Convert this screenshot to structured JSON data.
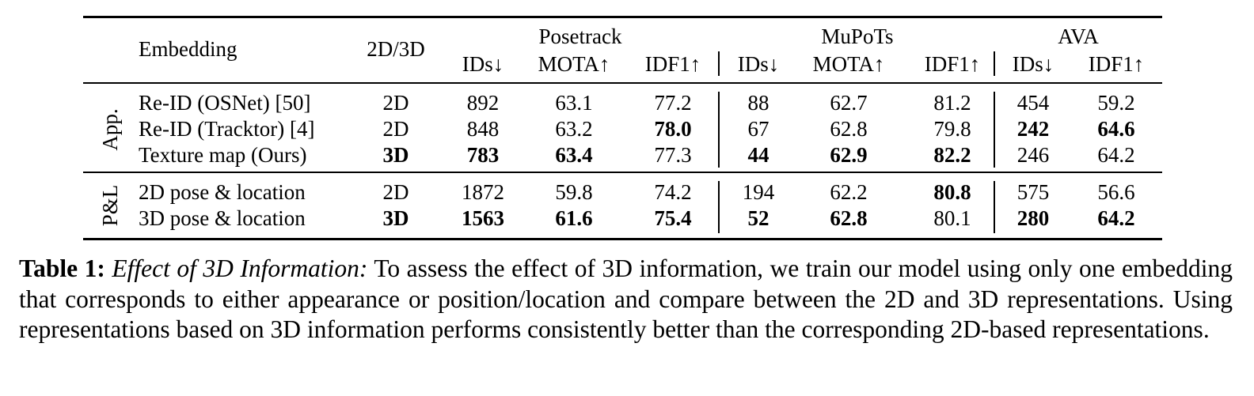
{
  "table": {
    "headers": {
      "embedding": "Embedding",
      "dim": "2D/3D",
      "groups": [
        "Posetrack",
        "MuPoTs",
        "AVA"
      ],
      "metrics": [
        "IDs↓",
        "MOTA↑",
        "IDF1↑",
        "IDs↓",
        "MOTA↑",
        "IDF1↑",
        "IDs↓",
        "IDF1↑"
      ]
    },
    "sections": [
      {
        "label": "App.",
        "rows": [
          {
            "cells": [
              "Re-ID (OSNet) [50]",
              "2D",
              "892",
              "63.1",
              "77.2",
              "88",
              "62.7",
              "81.2",
              "454",
              "59.2"
            ],
            "bold": [
              false,
              false,
              false,
              false,
              false,
              false,
              false,
              false,
              false,
              false
            ]
          },
          {
            "cells": [
              "Re-ID (Tracktor) [4]",
              "2D",
              "848",
              "63.2",
              "78.0",
              "67",
              "62.8",
              "79.8",
              "242",
              "64.6"
            ],
            "bold": [
              false,
              false,
              false,
              false,
              true,
              false,
              false,
              false,
              true,
              true
            ]
          },
          {
            "cells": [
              "Texture map (Ours)",
              "3D",
              "783",
              "63.4",
              "77.3",
              "44",
              "62.9",
              "82.2",
              "246",
              "64.2"
            ],
            "bold": [
              false,
              true,
              true,
              true,
              false,
              true,
              true,
              true,
              false,
              false
            ]
          }
        ]
      },
      {
        "label": "P&L",
        "rows": [
          {
            "cells": [
              "2D pose & location",
              "2D",
              "1872",
              "59.8",
              "74.2",
              "194",
              "62.2",
              "80.8",
              "575",
              "56.6"
            ],
            "bold": [
              false,
              false,
              false,
              false,
              false,
              false,
              false,
              true,
              false,
              false
            ]
          },
          {
            "cells": [
              "3D pose & location",
              "3D",
              "1563",
              "61.6",
              "75.4",
              "52",
              "62.8",
              "80.1",
              "280",
              "64.2"
            ],
            "bold": [
              false,
              true,
              true,
              true,
              true,
              true,
              true,
              false,
              true,
              true
            ]
          }
        ]
      }
    ]
  },
  "caption": {
    "label": "Table 1:",
    "title": "Effect of 3D Information:",
    "text": "To assess the effect of 3D information, we train our model using only one embedding that corresponds to either appearance or position/location and compare between the 2D and 3D representations. Using representations based on 3D information performs consistently better than the corresponding 2D-based representations."
  }
}
